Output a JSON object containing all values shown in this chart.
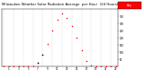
{
  "title": "Milwaukee Weather Solar Radiation Average  per Hour  (24 Hours)",
  "title_fontsize": 2.8,
  "hours": [
    0,
    1,
    2,
    3,
    4,
    5,
    6,
    7,
    8,
    9,
    10,
    11,
    12,
    13,
    14,
    15,
    16,
    17,
    18,
    19,
    20,
    21,
    22,
    23
  ],
  "solar_radiation": [
    0,
    0,
    0,
    0,
    0,
    0,
    2,
    25,
    80,
    160,
    250,
    330,
    370,
    340,
    280,
    200,
    110,
    40,
    8,
    1,
    0,
    0,
    0,
    0
  ],
  "dot_color": "#ff0000",
  "black_hours": [
    7,
    8
  ],
  "dot_size": 1.2,
  "grid_color": "#999999",
  "bg_color": "#ffffff",
  "plot_bg": "#ffffff",
  "ylim": [
    0,
    400
  ],
  "ytick_values": [
    50,
    100,
    150,
    200,
    250,
    300,
    350
  ],
  "xtick_hours": [
    1,
    3,
    5,
    7,
    9,
    11,
    13,
    15,
    17,
    19,
    21,
    23
  ],
  "xtick_labels": [
    "1",
    "3",
    "5",
    "7",
    "9",
    "11",
    "13",
    "15",
    "17",
    "19",
    "21",
    "23"
  ],
  "legend_box_color": "#ff0000",
  "legend_text": "Avg",
  "text_color": "#000000",
  "tick_fontsize": 2.0,
  "grid_linewidth": 0.25,
  "spine_linewidth": 0.3
}
